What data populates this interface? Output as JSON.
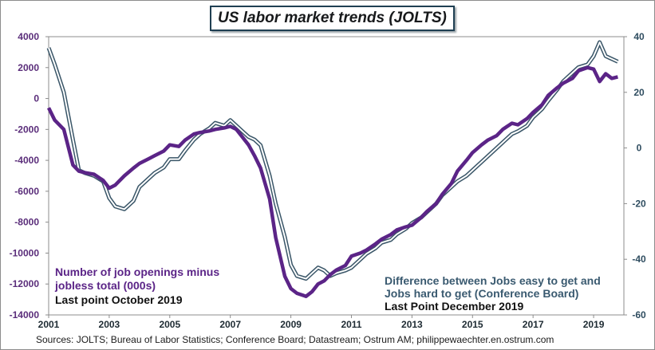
{
  "title": "US labor market trends (JOLTS)",
  "source": "Sources: JOLTS; Bureau of Labor Statistics; Conference Board; Datastream; Ostrum AM; philippewaechter.en.ostrum.com",
  "colors": {
    "openings_line": "#5b2487",
    "conference_outer": "#3a5668",
    "conference_inner": "#ffffff",
    "axis_left_text": "#5a2d7a",
    "axis_right_text": "#2f4d60",
    "frame_border": "#8c8c8c"
  },
  "annotations": {
    "left_line1": "Number of job openings minus",
    "left_line2": "jobless total (000s)",
    "left_line3": "Last point October 2019",
    "right_line1": "Difference between Jobs easy to get and",
    "right_line2": "Jobs hard to get (Conference Board)",
    "right_line3": "Last Point December 2019"
  },
  "chart_data": {
    "type": "line",
    "x_ticks": [
      "2001",
      "2003",
      "2005",
      "2007",
      "2009",
      "2011",
      "2013",
      "2015",
      "2017",
      "2019"
    ],
    "xlim": [
      2001.0,
      2020.0
    ],
    "y_left": {
      "ylim": [
        -14000,
        4000
      ],
      "ticks": [
        "4000",
        "2000",
        "0",
        "-2000",
        "-4000",
        "-6000",
        "-8000",
        "-10000",
        "-12000",
        "-14000"
      ]
    },
    "y_right": {
      "ylim": [
        -60,
        40
      ],
      "ticks": [
        "40",
        "20",
        "0",
        "-20",
        "-40",
        "-60"
      ]
    },
    "series": [
      {
        "axis": "left",
        "x": [
          2001.0,
          2001.2,
          2001.5,
          2001.8,
          2002.0,
          2002.2,
          2002.5,
          2002.8,
          2003.0,
          2003.2,
          2003.5,
          2003.8,
          2004.0,
          2004.3,
          2004.5,
          2004.8,
          2005.0,
          2005.3,
          2005.5,
          2005.8,
          2006.0,
          2006.3,
          2006.5,
          2006.8,
          2007.0,
          2007.2,
          2007.4,
          2007.6,
          2007.8,
          2008.0,
          2008.3,
          2008.5,
          2008.8,
          2009.0,
          2009.2,
          2009.5,
          2009.7,
          2009.9,
          2010.1,
          2010.3,
          2010.5,
          2010.8,
          2011.0,
          2011.3,
          2011.5,
          2011.8,
          2012.0,
          2012.3,
          2012.5,
          2012.8,
          2013.0,
          2013.3,
          2013.5,
          2013.8,
          2014.0,
          2014.3,
          2014.5,
          2014.8,
          2015.0,
          2015.3,
          2015.5,
          2015.8,
          2016.0,
          2016.3,
          2016.5,
          2016.8,
          2017.0,
          2017.3,
          2017.5,
          2017.8,
          2018.0,
          2018.3,
          2018.5,
          2018.8,
          2019.0,
          2019.2,
          2019.4,
          2019.6,
          2019.8
        ],
        "values": [
          -600,
          -1400,
          -2000,
          -4300,
          -4700,
          -4800,
          -4900,
          -5300,
          -5800,
          -5600,
          -5000,
          -4500,
          -4200,
          -3900,
          -3700,
          -3400,
          -3000,
          -3100,
          -2700,
          -2300,
          -2200,
          -2100,
          -2000,
          -1900,
          -1800,
          -2000,
          -2500,
          -3000,
          -3700,
          -4500,
          -6500,
          -9000,
          -11500,
          -12300,
          -12600,
          -12800,
          -12500,
          -12000,
          -11800,
          -11400,
          -11100,
          -10800,
          -10200,
          -10000,
          -9800,
          -9400,
          -9100,
          -8800,
          -8500,
          -8300,
          -8200,
          -7700,
          -7300,
          -6800,
          -6200,
          -5500,
          -4700,
          -4000,
          -3500,
          -3000,
          -2700,
          -2400,
          -2000,
          -1600,
          -1700,
          -1300,
          -900,
          -400,
          200,
          700,
          1000,
          1300,
          1800,
          2000,
          1900,
          1100,
          1600,
          1300,
          1400
        ],
        "color": "#5b2487"
      },
      {
        "axis": "right",
        "x": [
          2001.0,
          2001.2,
          2001.5,
          2001.8,
          2002.0,
          2002.2,
          2002.5,
          2002.8,
          2003.0,
          2003.2,
          2003.5,
          2003.8,
          2004.0,
          2004.3,
          2004.5,
          2004.8,
          2005.0,
          2005.3,
          2005.5,
          2005.8,
          2006.0,
          2006.3,
          2006.5,
          2006.8,
          2007.0,
          2007.2,
          2007.4,
          2007.6,
          2007.8,
          2008.0,
          2008.3,
          2008.5,
          2008.8,
          2009.0,
          2009.2,
          2009.5,
          2009.7,
          2009.9,
          2010.1,
          2010.3,
          2010.5,
          2010.8,
          2011.0,
          2011.3,
          2011.5,
          2011.8,
          2012.0,
          2012.3,
          2012.5,
          2012.8,
          2013.0,
          2013.3,
          2013.5,
          2013.8,
          2014.0,
          2014.3,
          2014.5,
          2014.8,
          2015.0,
          2015.3,
          2015.5,
          2015.8,
          2016.0,
          2016.3,
          2016.5,
          2016.8,
          2017.0,
          2017.3,
          2017.5,
          2017.8,
          2018.0,
          2018.3,
          2018.5,
          2018.8,
          2019.0,
          2019.2,
          2019.4,
          2019.6,
          2019.8
        ],
        "values": [
          36,
          30,
          20,
          3,
          -8,
          -9,
          -10,
          -12,
          -18,
          -21,
          -22,
          -19,
          -14,
          -11,
          -9,
          -7,
          -4,
          -4,
          -1,
          3,
          5,
          7,
          9,
          8,
          10,
          8,
          6,
          4,
          3,
          1,
          -10,
          -20,
          -32,
          -42,
          -46,
          -47,
          -45,
          -43,
          -44,
          -46,
          -45,
          -44,
          -43,
          -40,
          -38,
          -36,
          -34,
          -33,
          -31,
          -29,
          -27,
          -25,
          -23,
          -20,
          -17,
          -14,
          -12,
          -10,
          -8,
          -5,
          -3,
          0,
          2,
          5,
          6,
          8,
          11,
          14,
          17,
          21,
          24,
          27,
          29,
          30,
          33,
          38,
          33,
          32,
          31
        ],
        "color": "#3a5668"
      }
    ],
    "grid": false
  }
}
